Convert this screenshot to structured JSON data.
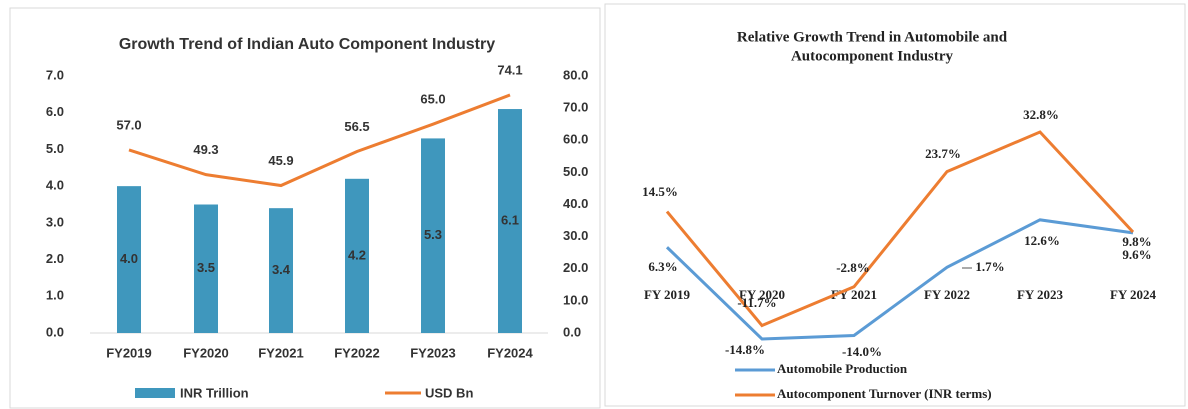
{
  "chart_data": [
    {
      "type": "bar_line",
      "title": "Growth Trend of Indian Auto Component Industry",
      "categories": [
        "FY2019",
        "FY2020",
        "FY2021",
        "FY2022",
        "FY2023",
        "FY2024"
      ],
      "series": [
        {
          "name": "INR Trillion",
          "type": "bar",
          "color": "#3f97bd",
          "values": [
            4.0,
            3.5,
            3.4,
            4.2,
            5.3,
            6.1
          ],
          "value_labels": [
            "4.0",
            "3.5",
            "3.4",
            "4.2",
            "5.3",
            "6.1"
          ]
        },
        {
          "name": "USD Bn",
          "type": "line",
          "axis": "y2",
          "color": "#ed7d31",
          "values": [
            57.0,
            49.3,
            45.9,
            56.5,
            65.0,
            74.1
          ],
          "value_labels": [
            "57.0",
            "49.3",
            "45.9",
            "56.5",
            "65.0",
            "74.1"
          ]
        }
      ],
      "ylim": [
        0,
        7
      ],
      "yticks": [
        {
          "value": 0,
          "label": "0.0"
        },
        {
          "value": 1,
          "label": "1.0"
        },
        {
          "value": 2,
          "label": "2.0"
        },
        {
          "value": 3,
          "label": "3.0"
        },
        {
          "value": 4,
          "label": "4.0"
        },
        {
          "value": 5,
          "label": "5.0"
        },
        {
          "value": 6,
          "label": "6.0"
        },
        {
          "value": 7,
          "label": "7.0"
        }
      ],
      "y2lim": [
        0,
        80
      ],
      "y2ticks": [
        {
          "value": 0,
          "label": "0.0"
        },
        {
          "value": 10,
          "label": "10.0"
        },
        {
          "value": 20,
          "label": "20.0"
        },
        {
          "value": 30,
          "label": "30.0"
        },
        {
          "value": 40,
          "label": "40.0"
        },
        {
          "value": 50,
          "label": "50.0"
        },
        {
          "value": 60,
          "label": "60.0"
        },
        {
          "value": 70,
          "label": "70.0"
        },
        {
          "value": 80,
          "label": "80.0"
        }
      ],
      "legend": "bottom"
    },
    {
      "type": "line",
      "title_lines": [
        "Relative Growth Trend in Automobile and",
        "Autocomponent Industry"
      ],
      "categories": [
        "FY 2019",
        "FY 2020",
        "FY 2021",
        "FY 2022",
        "FY 2023",
        "FY 2024"
      ],
      "series": [
        {
          "name": "Automobile Production",
          "color": "#5b9bd5",
          "values": [
            6.3,
            -14.8,
            -14.0,
            1.7,
            12.6,
            9.6
          ],
          "value_labels": [
            "6.3%",
            "-14.8%",
            "-14.0%",
            "1.7%",
            "12.6%",
            "9.6%"
          ]
        },
        {
          "name": "Autocomponent Turnover (INR terms)",
          "color": "#ed7d31",
          "values": [
            14.5,
            -11.7,
            -2.8,
            23.7,
            32.8,
            9.8
          ],
          "value_labels": [
            "14.5%",
            "-11.7%",
            "-2.8%",
            "23.7%",
            "32.8%",
            "9.8%"
          ]
        }
      ],
      "legend": "bottom"
    }
  ]
}
